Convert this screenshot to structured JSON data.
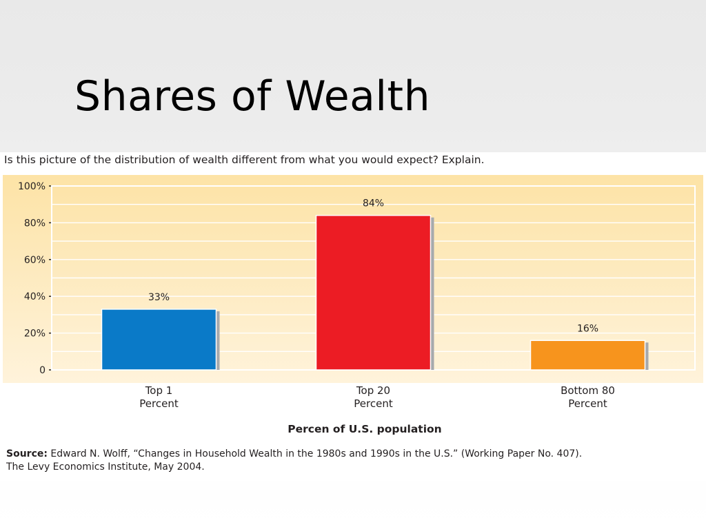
{
  "slide": {
    "title": "Shares of Wealth"
  },
  "figure": {
    "question": "Is this picture of the distribution of wealth different from what you would expect? Explain.",
    "source_label": "Source:",
    "source_line1": " Edward N. Wolff, “Changes in Household Wealth in the 1980s and 1990s in the U.S.” (Working Paper No. 407).",
    "source_line2": "The Levy Economics Institute, May 2004."
  },
  "chart_data": {
    "type": "bar",
    "categories": [
      [
        "Top 1",
        "Percent"
      ],
      [
        "Top 20",
        "Percent"
      ],
      [
        "Bottom 80",
        "Percent"
      ]
    ],
    "values": [
      33,
      84,
      16
    ],
    "data_labels": [
      "33%",
      "84%",
      "16%"
    ],
    "colors": [
      "#0a7ac8",
      "#ec1c24",
      "#f7941d"
    ],
    "xlabel": "Percen of U.S. population",
    "ylabel": "",
    "ylim": [
      0,
      100
    ],
    "yticks": [
      0,
      20,
      40,
      60,
      80,
      100
    ],
    "ytick_labels": [
      "0",
      "20%",
      "40%",
      "60%",
      "80%",
      "100%"
    ],
    "grid": true
  }
}
